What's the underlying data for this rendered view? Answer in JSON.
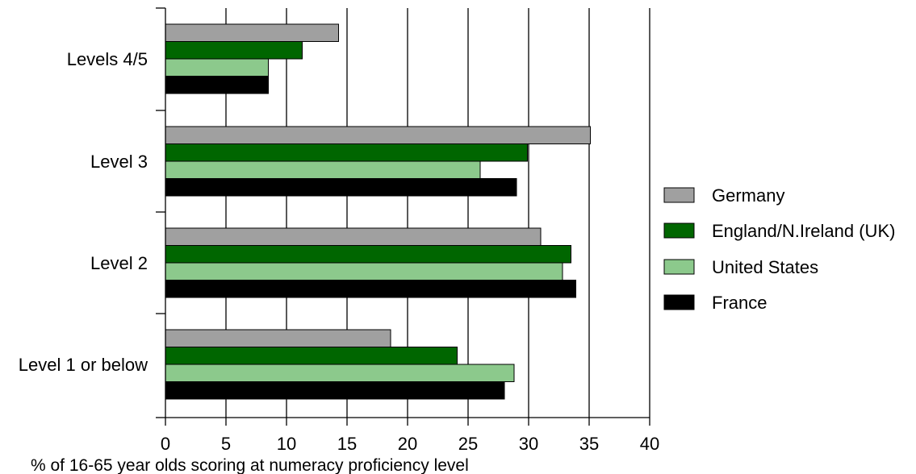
{
  "chart_data": {
    "type": "bar",
    "orientation": "horizontal",
    "title": "",
    "xlabel": "% of 16-65 year olds scoring at numeracy proficiency level",
    "ylabel": "",
    "xlim": [
      0,
      40
    ],
    "xticks": [
      0,
      5,
      10,
      15,
      20,
      25,
      30,
      35,
      40
    ],
    "grid": "vertical",
    "legend_position": "right",
    "categories": [
      "Levels 4/5",
      "Level 3",
      "Level 2",
      "Level 1 or below"
    ],
    "series": [
      {
        "name": "Germany",
        "color": "#a0a0a0",
        "values": [
          14.3,
          35.1,
          31.0,
          18.6
        ]
      },
      {
        "name": "England/N.Ireland (UK)",
        "color": "#006600",
        "values": [
          11.3,
          29.9,
          33.5,
          24.1
        ]
      },
      {
        "name": "United States",
        "color": "#8cc98c",
        "values": [
          8.5,
          26.0,
          32.8,
          28.8
        ]
      },
      {
        "name": "France",
        "color": "#000000",
        "values": [
          8.5,
          29.0,
          33.9,
          28.0
        ]
      }
    ]
  }
}
